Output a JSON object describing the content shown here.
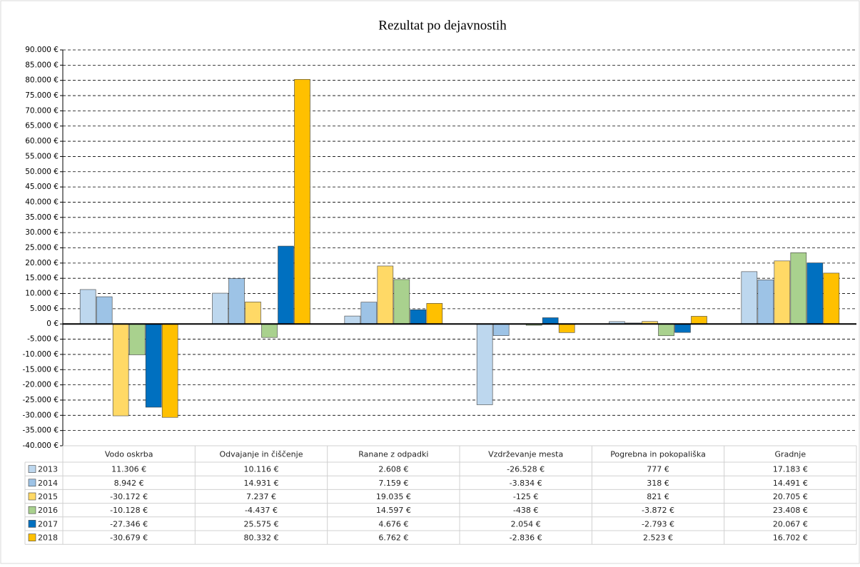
{
  "chart_data": {
    "type": "bar",
    "title": "Rezultat po dejavnostih",
    "categories": [
      "Vodo oskrba",
      "Odvajanje in čiščenje",
      "Ranane z odpadki",
      "Vzdrževanje mesta",
      "Pogrebna in pokopališka",
      "Gradnje"
    ],
    "series": [
      {
        "name": "2013",
        "color": "#bdd7ee",
        "values": [
          11306,
          10116,
          2608,
          -26528,
          777,
          17183
        ],
        "value_labels": [
          "11.306 €",
          "10.116 €",
          "2.608 €",
          "-26.528 €",
          "777 €",
          "17.183 €"
        ]
      },
      {
        "name": "2014",
        "color": "#9dc3e6",
        "values": [
          8942,
          14931,
          7159,
          -3834,
          318,
          14491
        ],
        "value_labels": [
          "8.942 €",
          "14.931 €",
          "7.159 €",
          "-3.834 €",
          "318 €",
          "14.491 €"
        ]
      },
      {
        "name": "2015",
        "color": "#ffd966",
        "values": [
          -30172,
          7237,
          19035,
          -125,
          821,
          20705
        ],
        "value_labels": [
          "-30.172 €",
          "7.237 €",
          "19.035 €",
          "-125 €",
          "821 €",
          "20.705 €"
        ]
      },
      {
        "name": "2016",
        "color": "#a9d18e",
        "values": [
          -10128,
          -4437,
          14597,
          -438,
          -3872,
          23408
        ],
        "value_labels": [
          "-10.128 €",
          "-4.437 €",
          "14.597 €",
          "-438 €",
          "-3.872 €",
          "23.408 €"
        ]
      },
      {
        "name": "2017",
        "color": "#0070c0",
        "values": [
          -27346,
          25575,
          4676,
          2054,
          -2793,
          20067
        ],
        "value_labels": [
          "-27.346 €",
          "25.575 €",
          "4.676 €",
          "2.054 €",
          "-2.793 €",
          "20.067 €"
        ]
      },
      {
        "name": "2018",
        "color": "#ffc000",
        "values": [
          -30679,
          80332,
          6762,
          -2836,
          2523,
          16702
        ],
        "value_labels": [
          "-30.679 €",
          "80.332 €",
          "6.762 €",
          "-2.836 €",
          "2.523 €",
          "16.702 €"
        ]
      }
    ],
    "ylim": [
      -40000,
      90000
    ],
    "yticks": [
      {
        "value": 90000,
        "label": "90.000 €"
      },
      {
        "value": 85000,
        "label": "85.000 €"
      },
      {
        "value": 80000,
        "label": "80.000 €"
      },
      {
        "value": 75000,
        "label": "75.000 €"
      },
      {
        "value": 70000,
        "label": "70.000 €"
      },
      {
        "value": 65000,
        "label": "65.000 €"
      },
      {
        "value": 60000,
        "label": "60.000 €"
      },
      {
        "value": 55000,
        "label": "55.000 €"
      },
      {
        "value": 50000,
        "label": "50.000 €"
      },
      {
        "value": 45000,
        "label": "45.000 €"
      },
      {
        "value": 40000,
        "label": "40.000 €"
      },
      {
        "value": 35000,
        "label": "35.000 €"
      },
      {
        "value": 30000,
        "label": "30.000 €"
      },
      {
        "value": 25000,
        "label": "25.000 €"
      },
      {
        "value": 20000,
        "label": "20.000 €"
      },
      {
        "value": 15000,
        "label": "15.000 €"
      },
      {
        "value": 10000,
        "label": "10.000 €"
      },
      {
        "value": 5000,
        "label": "5.000 €"
      },
      {
        "value": 0,
        "label": "0 €"
      },
      {
        "value": -5000,
        "label": "-5.000 €"
      },
      {
        "value": -10000,
        "label": "-10.000 €"
      },
      {
        "value": -15000,
        "label": "-15.000 €"
      },
      {
        "value": -20000,
        "label": "-20.000 €"
      },
      {
        "value": -25000,
        "label": "-25.000 €"
      },
      {
        "value": -30000,
        "label": "-30.000 €"
      },
      {
        "value": -35000,
        "label": "-35.000 €"
      },
      {
        "value": -40000,
        "label": "-40.000 €"
      }
    ],
    "grid": true,
    "negative_tick_color": "#ff0000"
  }
}
